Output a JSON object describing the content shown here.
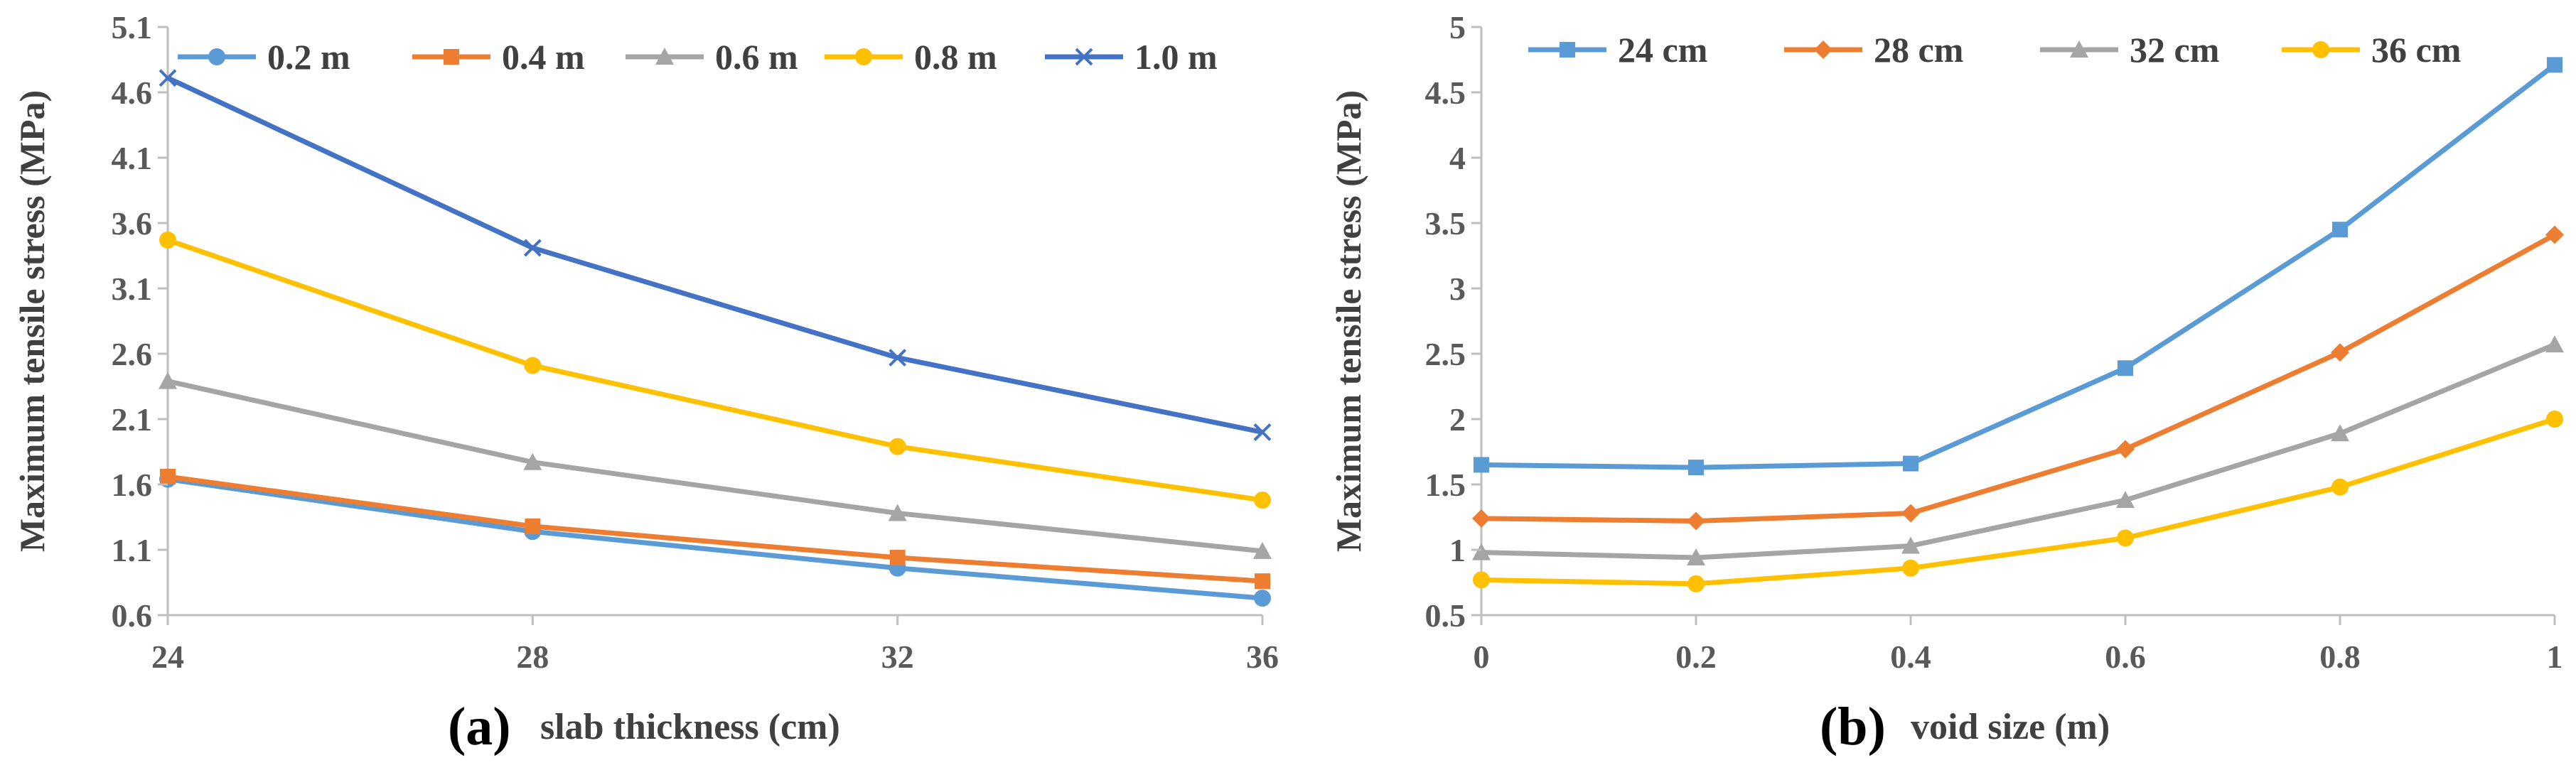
{
  "chart_data": [
    {
      "type": "line",
      "panel": "(a)",
      "title": "",
      "xlabel": "slab thickness (cm)",
      "ylabel": "Maximum tensile stress (MPa)",
      "categories": [
        "24",
        "28",
        "32",
        "36"
      ],
      "x": [
        24,
        28,
        32,
        36
      ],
      "xlim": [
        24,
        36
      ],
      "ylim": [
        0.6,
        5.1
      ],
      "yticks": [
        "0.6",
        "1.1",
        "1.6",
        "2.1",
        "2.6",
        "3.1",
        "3.6",
        "4.1",
        "4.6",
        "5.1"
      ],
      "ytick_values": [
        0.6,
        1.1,
        1.6,
        2.1,
        2.6,
        3.1,
        3.6,
        4.1,
        4.6,
        5.1
      ],
      "legend_position": "top",
      "series": [
        {
          "name": "0.2 m",
          "color": "#5b9bd5",
          "marker": "circle",
          "values": [
            1.64,
            1.24,
            0.96,
            0.73
          ]
        },
        {
          "name": "0.4 m",
          "color": "#ed7d31",
          "marker": "square",
          "values": [
            1.66,
            1.28,
            1.04,
            0.86
          ]
        },
        {
          "name": "0.6 m",
          "color": "#a5a5a5",
          "marker": "triangle",
          "values": [
            2.39,
            1.77,
            1.38,
            1.09
          ]
        },
        {
          "name": "0.8 m",
          "color": "#ffc000",
          "marker": "circle",
          "values": [
            3.47,
            2.51,
            1.89,
            1.48
          ]
        },
        {
          "name": "1.0 m",
          "color": "#4472c4",
          "marker": "x",
          "values": [
            4.71,
            3.41,
            2.57,
            2.0
          ]
        }
      ]
    },
    {
      "type": "line",
      "panel": "(b)",
      "title": "",
      "xlabel": "void size (m)",
      "ylabel": "Maximum tensile stress (MPa)",
      "categories": [
        "0",
        "0.2",
        "0.4",
        "0.6",
        "0.8",
        "1"
      ],
      "x": [
        0,
        0.2,
        0.4,
        0.6,
        0.8,
        1
      ],
      "xlim": [
        0,
        1
      ],
      "ylim": [
        0.5,
        5
      ],
      "yticks": [
        "0.5",
        "1",
        "1.5",
        "2",
        "2.5",
        "3",
        "3.5",
        "4",
        "4.5",
        "5"
      ],
      "ytick_values": [
        0.5,
        1,
        1.5,
        2,
        2.5,
        3,
        3.5,
        4,
        4.5,
        5
      ],
      "legend_position": "top",
      "series": [
        {
          "name": "24 cm",
          "color": "#5b9bd5",
          "marker": "square",
          "values": [
            1.65,
            1.63,
            1.66,
            2.39,
            3.45,
            4.71
          ]
        },
        {
          "name": "28 cm",
          "color": "#ed7d31",
          "marker": "diamond",
          "values": [
            1.24,
            1.22,
            1.28,
            1.77,
            2.51,
            3.41
          ]
        },
        {
          "name": "32 cm",
          "color": "#a5a5a5",
          "marker": "triangle",
          "values": [
            0.98,
            0.94,
            1.03,
            1.38,
            1.89,
            2.57
          ]
        },
        {
          "name": "36 cm",
          "color": "#ffc000",
          "marker": "circle",
          "values": [
            0.77,
            0.74,
            0.86,
            1.09,
            1.48,
            2.0
          ]
        }
      ]
    }
  ]
}
